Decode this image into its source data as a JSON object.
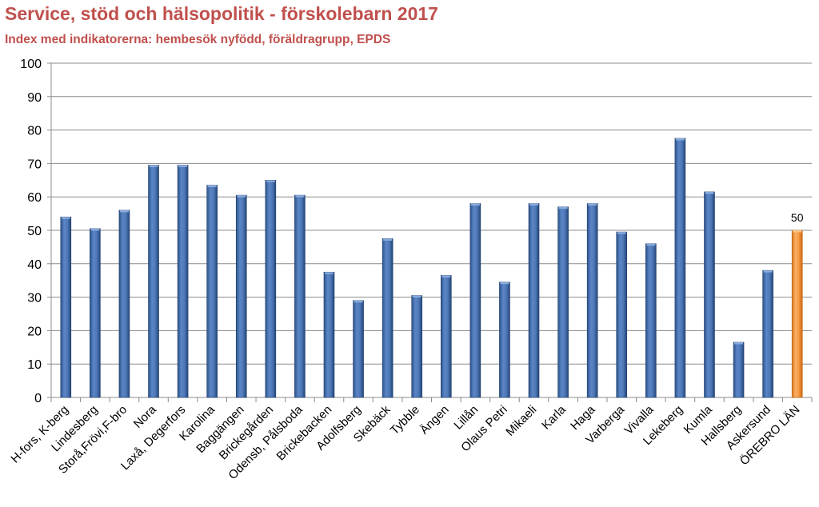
{
  "chart_data": {
    "type": "bar",
    "title": "Service, stöd och hälsopolitik - förskolebarn 2017",
    "subtitle": "Index med indikatorerna: hembesök nyfödd, föräldragrupp, EPDS",
    "xlabel": "",
    "ylabel": "",
    "ylim": [
      0,
      100
    ],
    "yticks": [
      0,
      10,
      20,
      30,
      40,
      50,
      60,
      70,
      80,
      90,
      100
    ],
    "grid": true,
    "categories": [
      "H-fors, K-berg",
      "Lindesberg",
      "Storå,Frövi,F-bro",
      "Nora",
      "Laxå, Degerfors",
      "Karolina",
      "Baggängen",
      "Brickegården",
      "Odensb, Pålsboda",
      "Brickebacken",
      "Adolfsberg",
      "Skebäck",
      "Tybble",
      "Ängen",
      "Lillån",
      "Olaus Petri",
      "Mikaeli",
      "Karla",
      "Haga",
      "Varberga",
      "Vivalla",
      "Lekeberg",
      "Kumla",
      "Hallsberg",
      "Askersund",
      "ÖREBRO LÄN"
    ],
    "values": [
      54,
      50.5,
      56,
      69.5,
      69.5,
      63.5,
      60.5,
      65,
      60.5,
      37.5,
      29,
      47.5,
      30.5,
      36.5,
      58,
      34.5,
      58,
      57,
      58,
      49.5,
      46,
      77.5,
      61.5,
      16.5,
      38,
      50
    ],
    "bar_colors": [
      "#4a72b0",
      "#4a72b0",
      "#4a72b0",
      "#4a72b0",
      "#4a72b0",
      "#4a72b0",
      "#4a72b0",
      "#4a72b0",
      "#4a72b0",
      "#4a72b0",
      "#4a72b0",
      "#4a72b0",
      "#4a72b0",
      "#4a72b0",
      "#4a72b0",
      "#4a72b0",
      "#4a72b0",
      "#4a72b0",
      "#4a72b0",
      "#4a72b0",
      "#4a72b0",
      "#4a72b0",
      "#4a72b0",
      "#4a72b0",
      "#4a72b0",
      "#f39a3e"
    ],
    "data_labels": [
      {
        "index": 25,
        "text": "50"
      }
    ]
  }
}
